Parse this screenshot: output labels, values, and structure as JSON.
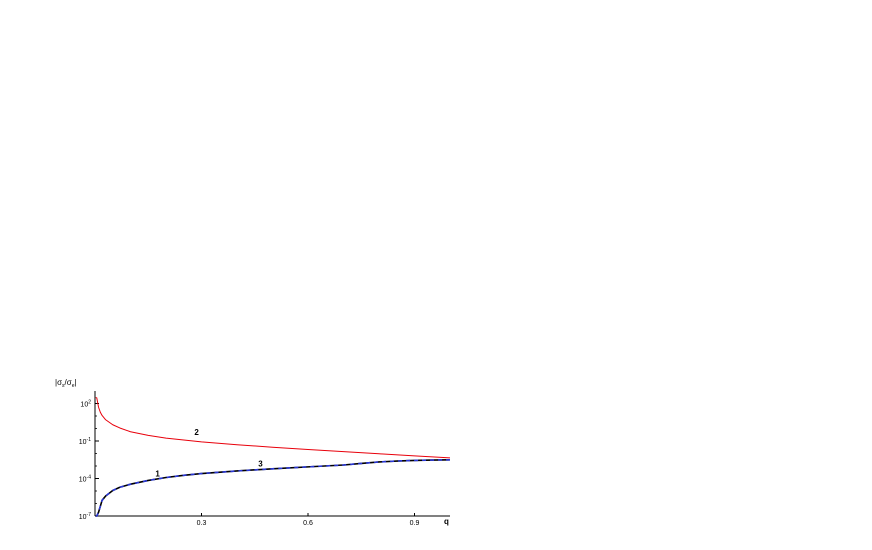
{
  "chart_data": {
    "type": "line",
    "ylabel_main": "|σ",
    "ylabel_sub1": "s",
    "ylabel_mid": "/σ",
    "ylabel_sub2": "e",
    "ylabel_end": "|",
    "xlabel": "q",
    "xlim": [
      0.0,
      1.0
    ],
    "ylim": [
      1e-07,
      1000
    ],
    "yscale": "log",
    "x_ticks": [
      {
        "value": 0.3,
        "label": "0.3"
      },
      {
        "value": 0.6,
        "label": "0.6"
      },
      {
        "value": 0.9,
        "label": "0.9"
      }
    ],
    "y_ticks": [
      {
        "value": 1e-07,
        "base": "10",
        "exp": "-7"
      },
      {
        "value": 0.0001,
        "base": "10",
        "exp": "-4"
      },
      {
        "value": 0.1,
        "base": "10",
        "exp": "-1"
      },
      {
        "value": 100,
        "base": "10",
        "exp": "2"
      }
    ],
    "series": [
      {
        "name": "1",
        "color": "#000000",
        "style": "solid",
        "x": [
          0.002,
          0.005,
          0.01,
          0.02,
          0.03,
          0.05,
          0.07,
          0.1,
          0.15,
          0.2,
          0.25,
          0.3,
          0.4,
          0.5,
          0.6,
          0.7,
          0.75,
          0.8,
          0.85,
          0.9,
          0.95,
          1.0
        ],
        "y": [
          1e-07,
          1e-07,
          2e-07,
          1.8e-06,
          4e-06,
          1.1e-05,
          2e-05,
          3.5e-05,
          7e-05,
          0.00012,
          0.00018,
          0.00025,
          0.0004,
          0.0006,
          0.00085,
          0.0012,
          0.0016,
          0.0021,
          0.0025,
          0.0028,
          0.003,
          0.0031
        ]
      },
      {
        "name": "2",
        "color": "#e8000b",
        "style": "solid",
        "x": [
          0.002,
          0.005,
          0.01,
          0.015,
          0.02,
          0.03,
          0.05,
          0.07,
          0.1,
          0.15,
          0.2,
          0.3,
          0.4,
          0.5,
          0.6,
          0.7,
          0.8,
          0.9,
          1.0
        ],
        "y": [
          300,
          280,
          50,
          20,
          11,
          5,
          2,
          1.1,
          0.55,
          0.28,
          0.17,
          0.085,
          0.05,
          0.032,
          0.021,
          0.014,
          0.0095,
          0.0065,
          0.0045
        ]
      },
      {
        "name": "3",
        "color": "#2a37d6",
        "style": "dashed",
        "x": [
          0.002,
          0.005,
          0.01,
          0.02,
          0.03,
          0.05,
          0.07,
          0.1,
          0.15,
          0.2,
          0.25,
          0.3,
          0.4,
          0.5,
          0.6,
          0.7,
          0.75,
          0.8,
          0.85,
          0.9,
          0.95,
          1.0
        ],
        "y": [
          1e-07,
          1e-07,
          2e-07,
          1.8e-06,
          4e-06,
          1.1e-05,
          2e-05,
          3.5e-05,
          7e-05,
          0.00012,
          0.00018,
          0.00025,
          0.0004,
          0.0006,
          0.00085,
          0.0012,
          0.0016,
          0.0021,
          0.0025,
          0.0028,
          0.003,
          0.0031
        ]
      }
    ],
    "annotations": [
      {
        "text": "1",
        "x": 0.17,
        "y": 0.00015
      },
      {
        "text": "2",
        "x": 0.28,
        "y": 0.3
      },
      {
        "text": "3",
        "x": 0.46,
        "y": 0.0009
      }
    ],
    "grid": false,
    "legend": "none"
  }
}
